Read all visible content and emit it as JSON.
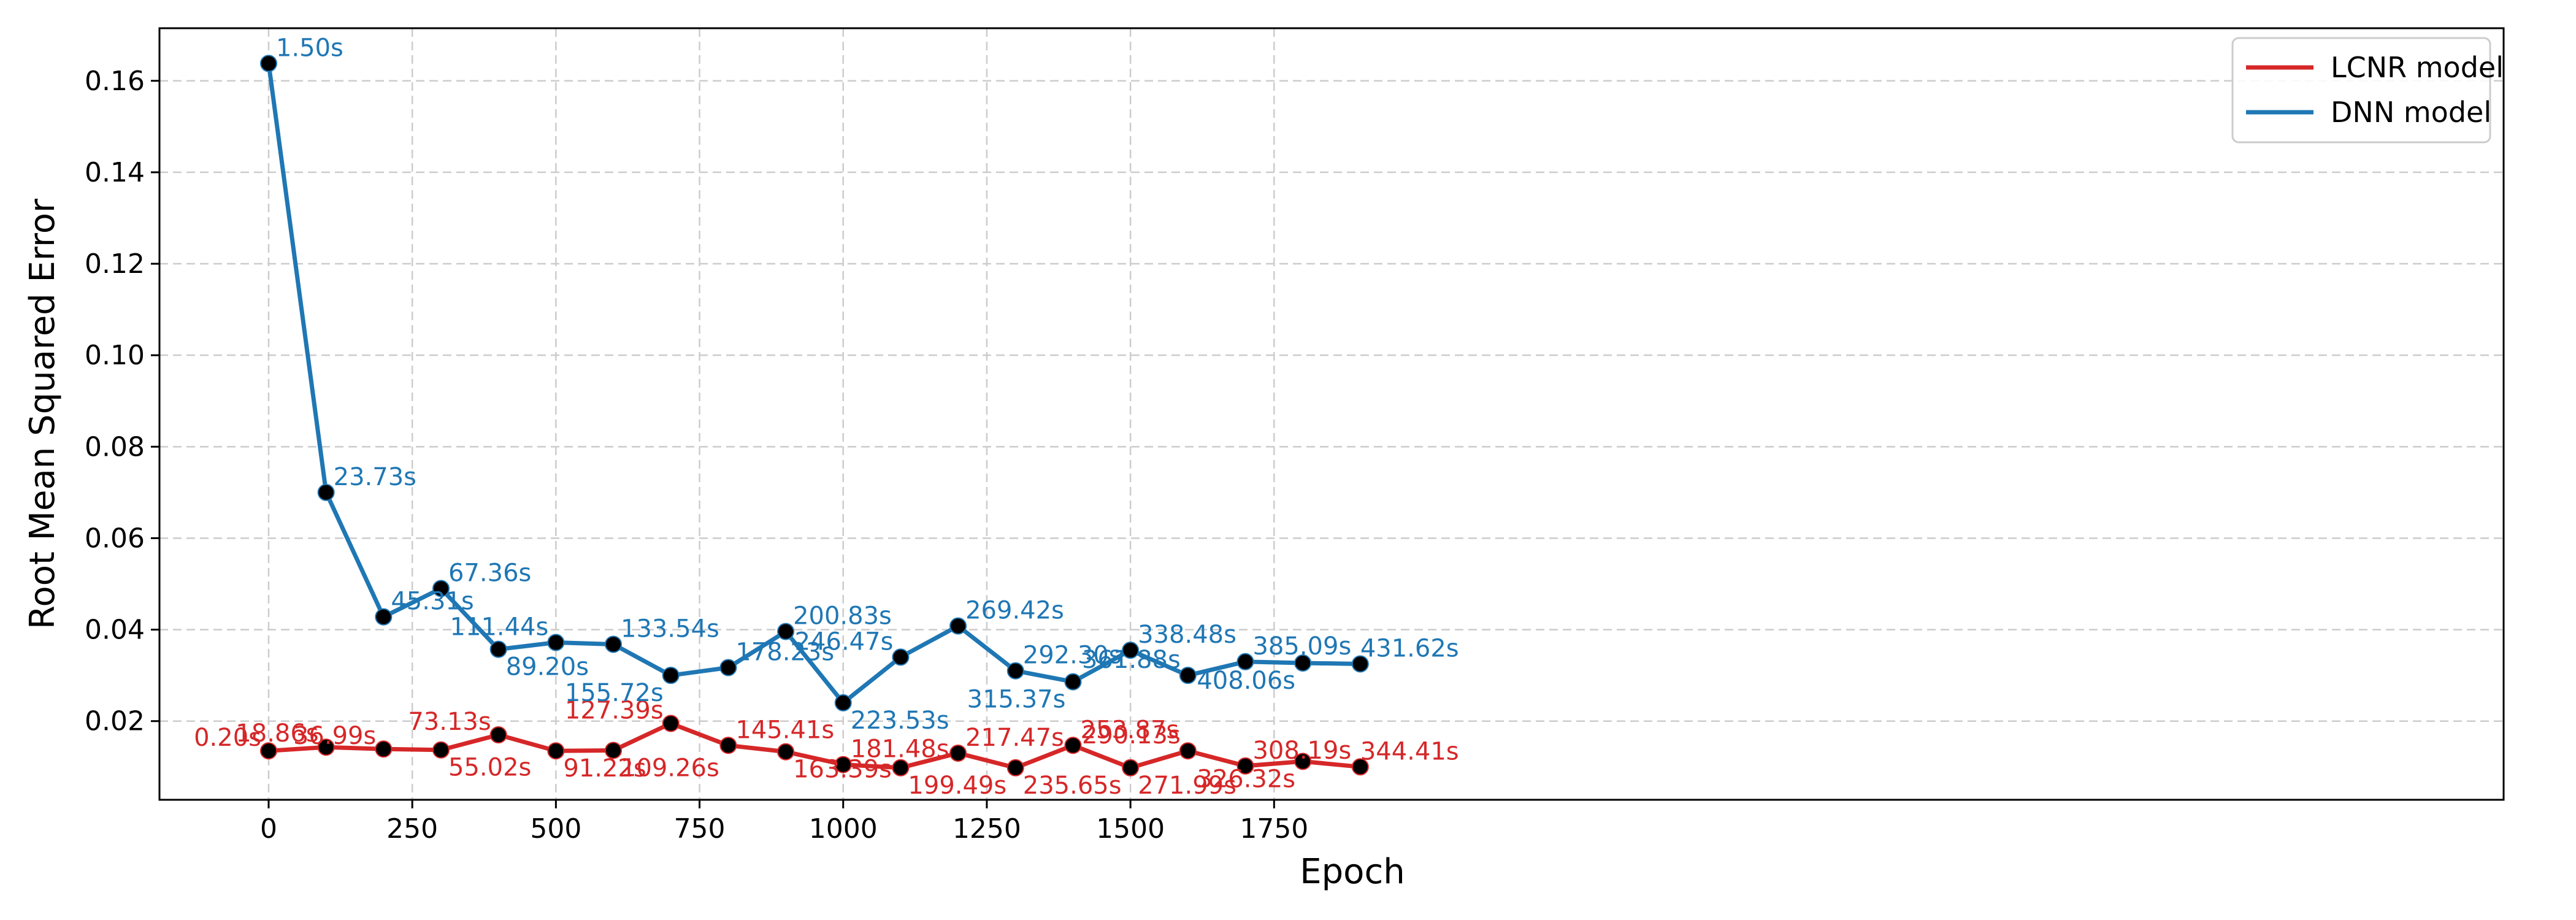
{
  "chart_data": {
    "type": "line",
    "title": "",
    "xlabel": "Epoch",
    "ylabel": "Root Mean Squared Error",
    "xlim": [
      -190,
      3890
    ],
    "ylim": [
      0.0028,
      0.1715
    ],
    "x_ticks": [
      0,
      250,
      500,
      750,
      1000,
      1250,
      1500,
      1750
    ],
    "y_ticks": [
      0.02,
      0.04,
      0.06,
      0.08,
      0.1,
      0.12,
      0.14,
      0.16
    ],
    "y_tick_labels": [
      "0.02",
      "0.04",
      "0.06",
      "0.08",
      "0.10",
      "0.12",
      "0.14",
      "0.16"
    ],
    "grid": true,
    "legend_position": "top-right",
    "x": [
      0,
      100,
      200,
      300,
      400,
      500,
      600,
      700,
      800,
      900,
      1000,
      1100,
      1200,
      1300,
      1400,
      1500,
      1600,
      1700,
      1800,
      1900
    ],
    "series": [
      {
        "name": "LCNR model",
        "color": "#d62728",
        "values": [
          0.0135,
          0.0143,
          0.0139,
          0.0137,
          0.017,
          0.0135,
          0.0136,
          0.0195,
          0.0147,
          0.0133,
          0.0105,
          0.0098,
          0.013,
          0.0098,
          0.0147,
          0.0098,
          0.0135,
          0.0102,
          0.0112,
          0.01
        ],
        "time_labels": [
          "0.20s",
          "18.86s",
          "36.99s",
          "55.02s",
          "73.13s",
          "91.22s",
          "109.26s",
          "127.39s",
          "145.41s",
          "163.39s",
          "181.48s",
          "199.49s",
          "217.47s",
          "235.65s",
          "253.87s",
          "271.99s",
          "290.13s",
          "308.19s",
          "326.32s",
          "344.41s"
        ]
      },
      {
        "name": "DNN model",
        "color": "#1f77b4",
        "values": [
          0.1638,
          0.07,
          0.0428,
          0.049,
          0.0357,
          0.0372,
          0.0368,
          0.03,
          0.0317,
          0.0396,
          0.024,
          0.034,
          0.0408,
          0.031,
          0.0286,
          0.0355,
          0.03,
          0.033,
          0.0327,
          0.0325
        ],
        "time_labels": [
          "1.50s",
          "23.73s",
          "45.31s",
          "67.36s",
          "89.20s",
          "111.44s",
          "133.54s",
          "155.72s",
          "178.23s",
          "200.83s",
          "223.53s",
          "246.47s",
          "269.42s",
          "292.30s",
          "315.37s",
          "338.48s",
          "361.88s",
          "385.09s",
          "408.06s",
          "431.62s"
        ]
      }
    ]
  },
  "colors": {
    "lcnr": "#d62728",
    "dnn": "#1f77b4",
    "marker": "#000000",
    "grid": "#cccccc"
  }
}
